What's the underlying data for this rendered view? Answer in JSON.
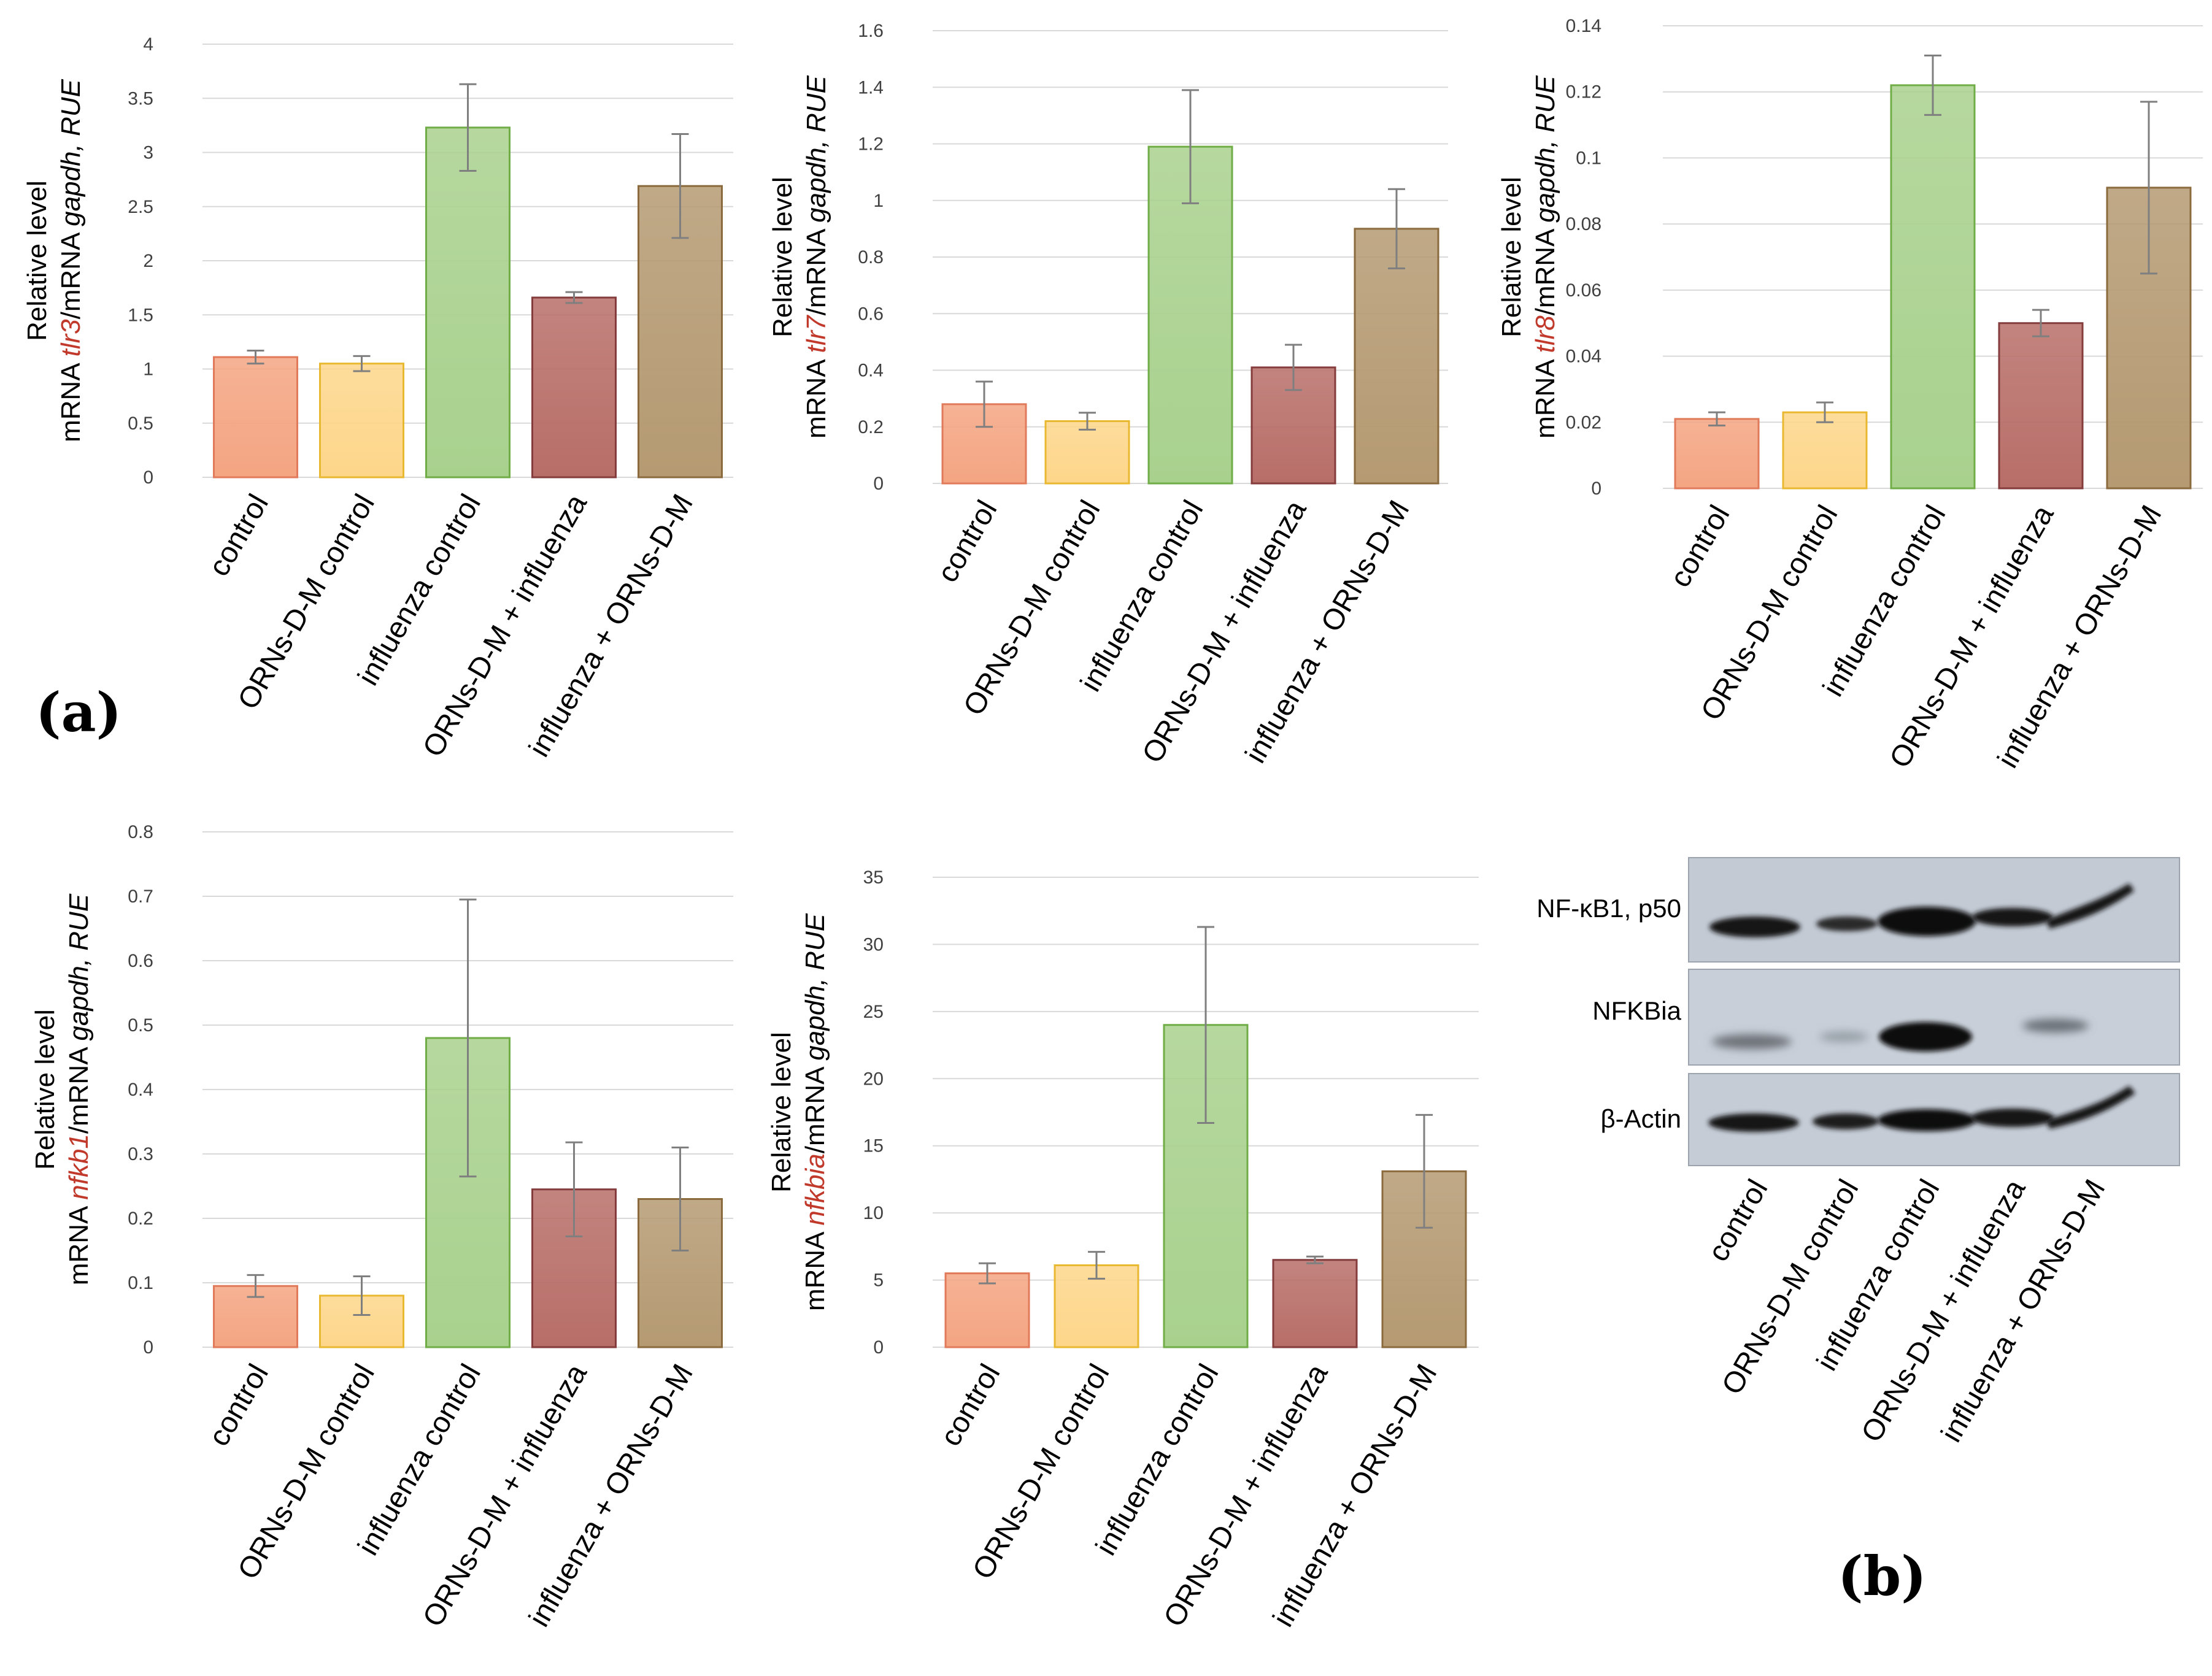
{
  "panel_labels": {
    "a": "(a)",
    "b": "(b)"
  },
  "chart_data": [
    {
      "type": "bar",
      "categories": [
        "control",
        "ORNs-D-M control",
        "influenza control",
        "ORNs-D-M + influenza",
        "influenza + ORNs-D-M"
      ],
      "values": [
        1.11,
        1.05,
        3.23,
        1.66,
        2.69
      ],
      "errors": [
        0.06,
        0.07,
        0.4,
        0.05,
        0.48
      ],
      "ylim": [
        0,
        4
      ],
      "yticks": [
        "0",
        "0.5",
        "1",
        "1.5",
        "2",
        "2.5",
        "3",
        "3.5",
        "4"
      ],
      "ylabel": {
        "line1": "Relative level",
        "pre": "mRNA ",
        "gene": "tlr3",
        "mid": "/mRNA ",
        "ref": "gapdh",
        "post": ", RUE"
      }
    },
    {
      "type": "bar",
      "categories": [
        "control",
        "ORNs-D-M control",
        "influenza control",
        "ORNs-D-M + influenza",
        "influenza + ORNs-D-M"
      ],
      "values": [
        0.28,
        0.22,
        1.19,
        0.41,
        0.9
      ],
      "errors": [
        0.08,
        0.03,
        0.2,
        0.08,
        0.14
      ],
      "ylim": [
        0,
        1.6
      ],
      "yticks": [
        "0",
        "0.2",
        "0.4",
        "0.6",
        "0.8",
        "1",
        "1.2",
        "1.4",
        "1.6"
      ],
      "ylabel": {
        "line1": "Relative level",
        "pre": "mRNA ",
        "gene": "tlr7",
        "mid": "/mRNA ",
        "ref": "gapdh",
        "post": ", RUE"
      }
    },
    {
      "type": "bar",
      "categories": [
        "control",
        "ORNs-D-M control",
        "influenza control",
        "ORNs-D-M + influenza",
        "influenza + ORNs-D-M"
      ],
      "values": [
        0.021,
        0.023,
        0.122,
        0.05,
        0.091
      ],
      "errors": [
        0.002,
        0.003,
        0.009,
        0.004,
        0.026
      ],
      "ylim": [
        0,
        0.14
      ],
      "yticks": [
        "0",
        "0.02",
        "0.04",
        "0.06",
        "0.08",
        "0.1",
        "0.12",
        "0.14"
      ],
      "ylabel": {
        "line1": "Relative level",
        "pre": "mRNA ",
        "gene": "tlr8",
        "mid": "/mRNA ",
        "ref": "gapdh",
        "post": ", RUE"
      }
    },
    {
      "type": "bar",
      "categories": [
        "control",
        "ORNs-D-M control",
        "influenza control",
        "ORNs-D-M + influenza",
        "influenza + ORNs-D-M"
      ],
      "values": [
        0.095,
        0.08,
        0.48,
        0.245,
        0.23
      ],
      "errors": [
        0.017,
        0.03,
        0.215,
        0.073,
        0.08
      ],
      "ylim": [
        0,
        0.8
      ],
      "yticks": [
        "0",
        "0.1",
        "0.2",
        "0.3",
        "0.4",
        "0.5",
        "0.6",
        "0.7",
        "0.8"
      ],
      "ylabel": {
        "line1": "Relative level",
        "pre": "mRNA ",
        "gene": "nfkb1",
        "mid": "/mRNA ",
        "ref": "gapdh",
        "post": ", RUE"
      }
    },
    {
      "type": "bar",
      "categories": [
        "control",
        "ORNs-D-M control",
        "influenza control",
        "ORNs-D-M + influenza",
        "influenza + ORNs-D-M"
      ],
      "values": [
        5.5,
        6.1,
        24,
        6.5,
        13.1
      ],
      "errors": [
        0.75,
        1.0,
        7.3,
        0.25,
        4.2
      ],
      "ylim": [
        0,
        35
      ],
      "yticks": [
        "0",
        "5",
        "10",
        "15",
        "20",
        "25",
        "30",
        "35"
      ],
      "ylabel": {
        "line1": "Relative level",
        "pre": "mRNA ",
        "gene": "nfkbia",
        "mid": "/mRNA ",
        "ref": "gapdh",
        "post": ", RUE"
      }
    }
  ],
  "western_blot": {
    "rows": [
      "NF-κB1, p50",
      "NFKBia",
      "β-Actin"
    ],
    "lanes": [
      "control",
      "ORNs-D-M control",
      "influenza control",
      "ORNs-D-M + influenza",
      "influenza + ORNs-D-M"
    ]
  },
  "colors": {
    "fills": [
      "#f4a582",
      "#fdd68a",
      "#a9d18e",
      "#b86e68",
      "#b59a72"
    ],
    "borders": [
      "#e07a5a",
      "#e8b830",
      "#70ad47",
      "#843c3c",
      "#8b6b3e"
    ],
    "grid": "#d9d9d9",
    "errbar": "#7f7f7f",
    "gene": "#c0392b"
  }
}
